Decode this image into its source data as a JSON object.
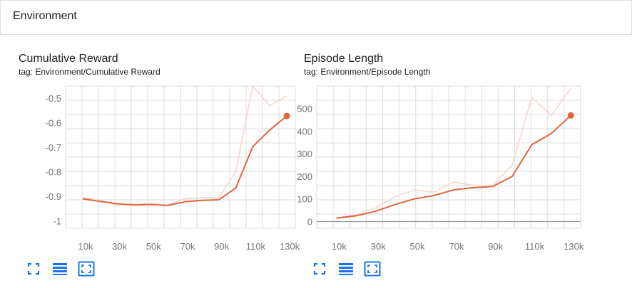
{
  "section": {
    "title": "Environment"
  },
  "charts": [
    {
      "title": "Cumulative Reward",
      "tag": "tag: Environment/Cumulative Reward",
      "toolbar": {
        "fullscreen_icon": "fullscreen-icon",
        "data_icon": "data-table-icon",
        "fit_icon": "fit-domain-icon"
      },
      "chart_data": {
        "type": "line",
        "title": "Cumulative Reward",
        "x_ticks": [
          "10k",
          "30k",
          "50k",
          "70k",
          "90k",
          "110k",
          "130k"
        ],
        "y_ticks": [
          "-0.5",
          "-0.6",
          "-0.7",
          "-0.8",
          "-0.9",
          "-1"
        ],
        "xlim": [
          0,
          135000
        ],
        "ylim": [
          -1.03,
          -0.45
        ],
        "series": [
          {
            "role": "raw",
            "color": "#f6d7ce",
            "x": [
              10000,
              20000,
              30000,
              40000,
              50000,
              60000,
              70000,
              80000,
              90000,
              100000,
              110000,
              120000,
              130000
            ],
            "y": [
              -0.905,
              -0.915,
              -0.935,
              -0.93,
              -0.93,
              -0.935,
              -0.91,
              -0.905,
              -0.905,
              -0.8,
              -0.45,
              -0.53,
              -0.49
            ]
          },
          {
            "role": "smoothed",
            "color": "#e0663c",
            "x": [
              10000,
              20000,
              30000,
              40000,
              50000,
              60000,
              70000,
              80000,
              90000,
              100000,
              110000,
              120000,
              130000
            ],
            "y": [
              -0.91,
              -0.92,
              -0.93,
              -0.935,
              -0.933,
              -0.937,
              -0.922,
              -0.916,
              -0.914,
              -0.866,
              -0.697,
              -0.629,
              -0.572
            ]
          }
        ]
      }
    },
    {
      "title": "Episode Length",
      "tag": "tag: Environment/Episode Length",
      "toolbar": {
        "fullscreen_icon": "fullscreen-icon",
        "data_icon": "data-table-icon",
        "fit_icon": "fit-domain-icon"
      },
      "chart_data": {
        "type": "line",
        "title": "Episode Length",
        "x_ticks": [
          "10k",
          "30k",
          "50k",
          "70k",
          "90k",
          "110k",
          "130k"
        ],
        "y_ticks": [
          "500",
          "400",
          "300",
          "200",
          "100",
          "0"
        ],
        "xlim": [
          0,
          135000
        ],
        "ylim": [
          -30,
          600
        ],
        "series": [
          {
            "role": "raw",
            "color": "#f6d7ce",
            "x": [
              10000,
              20000,
              30000,
              40000,
              50000,
              60000,
              70000,
              80000,
              90000,
              100000,
              110000,
              120000,
              130000
            ],
            "y": [
              15,
              30,
              60,
              110,
              140,
              130,
              175,
              160,
              160,
              250,
              550,
              470,
              590
            ]
          },
          {
            "role": "smoothed",
            "color": "#e0663c",
            "x": [
              10000,
              20000,
              30000,
              40000,
              50000,
              60000,
              70000,
              80000,
              90000,
              100000,
              110000,
              120000,
              130000
            ],
            "y": [
              15,
              25,
              45,
              75,
              100,
              115,
              140,
              150,
              155,
              200,
              340,
              390,
              470
            ]
          }
        ]
      }
    }
  ]
}
